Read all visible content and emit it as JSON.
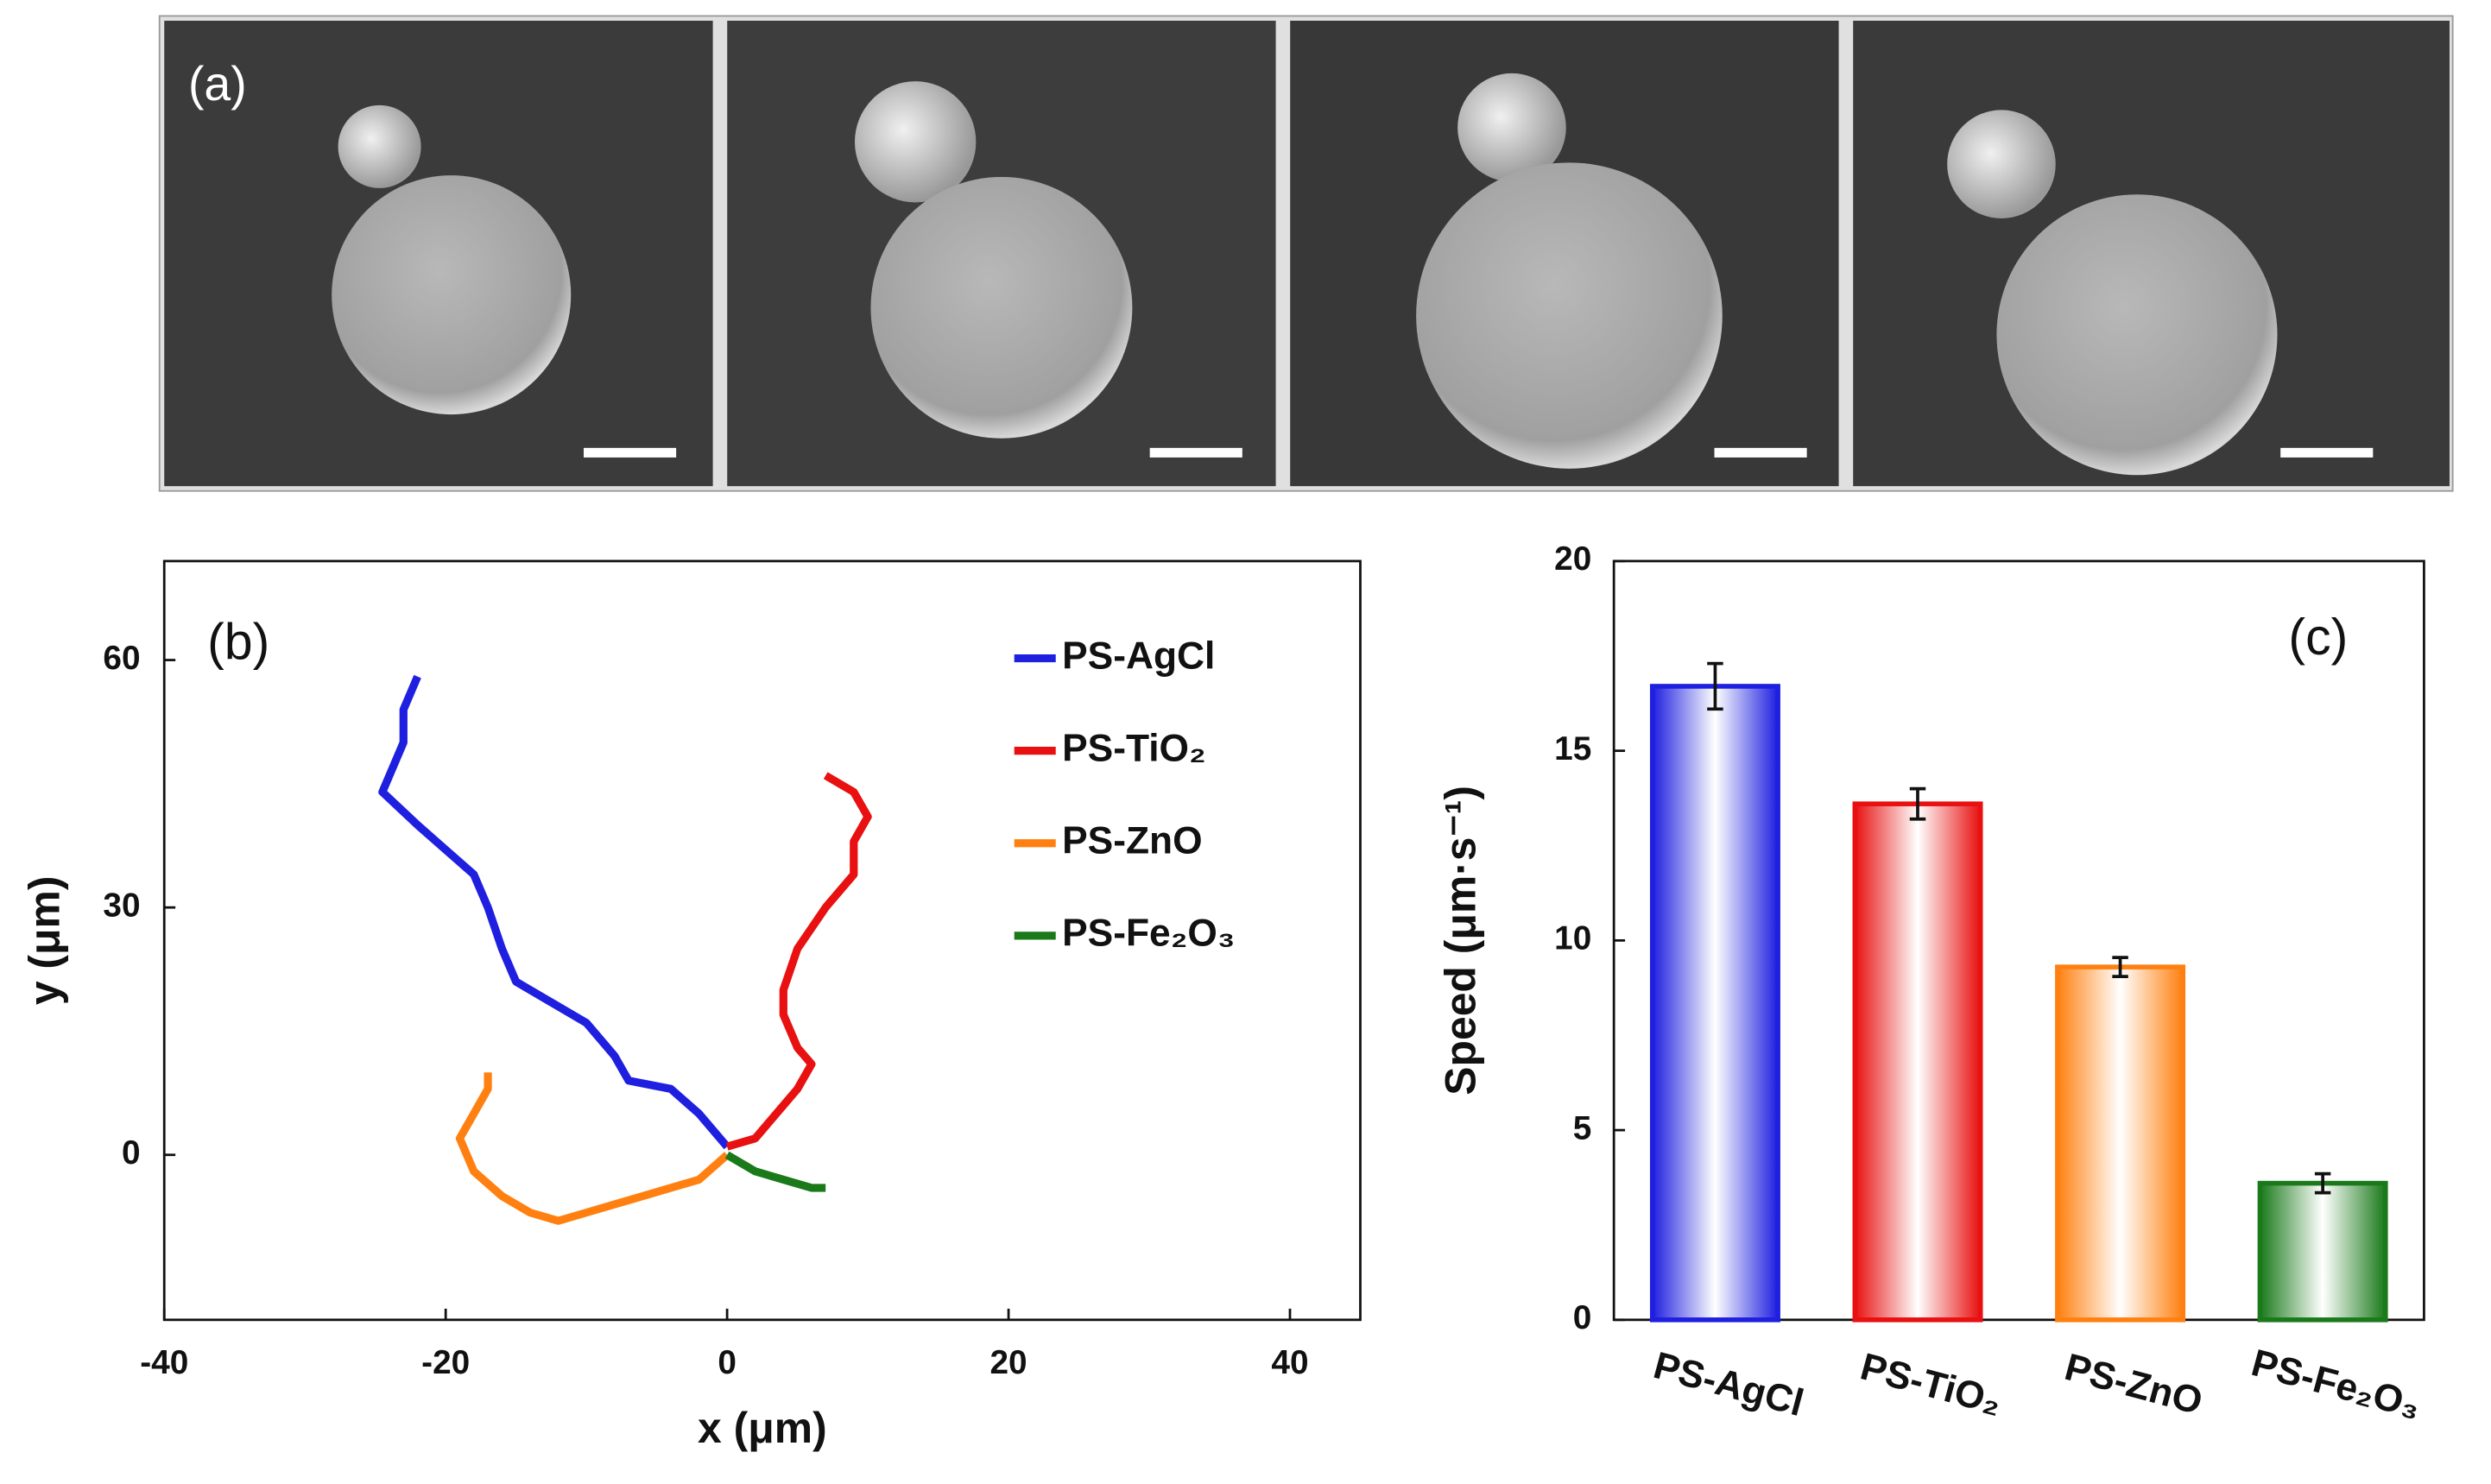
{
  "panel_a": {
    "label": "(a)"
  },
  "chart_data": [
    {
      "type": "line",
      "annotation": "(b)",
      "xlabel": "x (μm)",
      "ylabel": "y (μm)",
      "xlim": [
        -40,
        45
      ],
      "ylim": [
        -20,
        72
      ],
      "xticks": [
        -40,
        -20,
        0,
        20,
        40
      ],
      "yticks": [
        0,
        30,
        60
      ],
      "legend": "upper right",
      "series": [
        {
          "name": "PS-AgCl",
          "color": "#1f1fe0",
          "x": [
            -22,
            -23,
            -23,
            -24,
            -24.5,
            -22,
            -20,
            -18,
            -17,
            -16,
            -15,
            -13,
            -10,
            -8,
            -7,
            -4,
            -2,
            0
          ],
          "y": [
            58,
            54,
            50,
            46,
            44,
            40,
            37,
            34,
            30,
            25,
            21,
            19,
            16,
            12,
            9,
            8,
            5,
            1
          ]
        },
        {
          "name": "PS-TiO₂",
          "color": "#e81010",
          "x": [
            0,
            2,
            3,
            5,
            6,
            5,
            4,
            4,
            5,
            7,
            9,
            9,
            10,
            9,
            7
          ],
          "y": [
            1,
            2,
            4,
            8,
            11,
            13,
            17,
            20,
            25,
            30,
            34,
            38,
            41,
            44,
            46
          ]
        },
        {
          "name": "PS-ZnO",
          "color": "#ff8010",
          "x": [
            0,
            -2,
            -6,
            -10,
            -12,
            -14,
            -16,
            -18,
            -19,
            -18,
            -17,
            -17
          ],
          "y": [
            0,
            -3,
            -5,
            -7,
            -8,
            -7,
            -5,
            -2,
            2,
            5,
            8,
            10
          ]
        },
        {
          "name": "PS-Fe₂O₃",
          "color": "#1a7a1a",
          "x": [
            0,
            2,
            4,
            6,
            7
          ],
          "y": [
            0,
            -2,
            -3,
            -4,
            -4
          ]
        }
      ]
    },
    {
      "type": "bar",
      "annotation": "(c)",
      "ylabel": "Speed (μm·s⁻¹)",
      "categories": [
        "PS-AgCl",
        "PS-TiO₂",
        "PS-ZnO",
        "PS-Fe₂O₃"
      ],
      "values": [
        16.7,
        13.6,
        9.3,
        3.6
      ],
      "errors": [
        0.6,
        0.4,
        0.25,
        0.25
      ],
      "colors": [
        "#1f1fe0",
        "#e81010",
        "#ff8010",
        "#1a7a1a"
      ],
      "ylim": [
        0,
        20
      ],
      "yticks": [
        0,
        5,
        10,
        15,
        20
      ]
    }
  ]
}
